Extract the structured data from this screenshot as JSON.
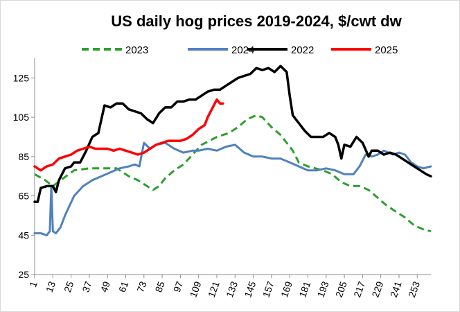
{
  "chart_data": {
    "type": "line",
    "title": "US daily hog prices 2019-2024, $/cwt dw",
    "xlabel": "",
    "ylabel": "",
    "ylim": [
      25,
      135
    ],
    "xlim": [
      1,
      262
    ],
    "yticks": [
      25,
      45,
      65,
      85,
      105,
      125
    ],
    "xticks": [
      1,
      13,
      25,
      37,
      49,
      61,
      73,
      85,
      97,
      109,
      121,
      133,
      145,
      157,
      169,
      181,
      193,
      205,
      217,
      229,
      241,
      253
    ],
    "grid": false,
    "legend_position": "top",
    "legend": [
      "2023",
      "2024",
      "2022",
      "2025"
    ],
    "series": [
      {
        "name": "2023",
        "color": "#2ca02c",
        "style": "dashed",
        "points": [
          [
            1,
            76
          ],
          [
            8,
            73
          ],
          [
            13,
            70
          ],
          [
            20,
            74
          ],
          [
            27,
            78
          ],
          [
            37,
            79
          ],
          [
            45,
            79
          ],
          [
            55,
            79
          ],
          [
            63,
            75
          ],
          [
            69,
            73
          ],
          [
            75,
            70
          ],
          [
            79,
            68
          ],
          [
            83,
            70
          ],
          [
            87,
            74
          ],
          [
            93,
            78
          ],
          [
            99,
            81
          ],
          [
            105,
            86
          ],
          [
            111,
            91
          ],
          [
            121,
            95
          ],
          [
            129,
            97
          ],
          [
            135,
            100
          ],
          [
            141,
            104
          ],
          [
            147,
            106
          ],
          [
            151,
            105
          ],
          [
            157,
            100
          ],
          [
            163,
            96
          ],
          [
            167,
            92
          ],
          [
            171,
            88
          ],
          [
            175,
            82
          ],
          [
            181,
            80
          ],
          [
            191,
            78
          ],
          [
            197,
            76
          ],
          [
            203,
            72
          ],
          [
            209,
            70
          ],
          [
            215,
            70
          ],
          [
            221,
            68
          ],
          [
            227,
            64
          ],
          [
            233,
            60
          ],
          [
            239,
            57
          ],
          [
            245,
            54
          ],
          [
            251,
            50
          ],
          [
            257,
            48
          ],
          [
            262,
            47
          ]
        ]
      },
      {
        "name": "2024",
        "color": "#4f81bd",
        "style": "solid",
        "points": [
          [
            1,
            46
          ],
          [
            5,
            46
          ],
          [
            9,
            45
          ],
          [
            11,
            47
          ],
          [
            12,
            70
          ],
          [
            13,
            47
          ],
          [
            15,
            46
          ],
          [
            18,
            49
          ],
          [
            21,
            55
          ],
          [
            27,
            65
          ],
          [
            33,
            70
          ],
          [
            39,
            73
          ],
          [
            45,
            75
          ],
          [
            51,
            77
          ],
          [
            57,
            79
          ],
          [
            63,
            80
          ],
          [
            67,
            81
          ],
          [
            70,
            80
          ],
          [
            73,
            92
          ],
          [
            77,
            89
          ],
          [
            81,
            91
          ],
          [
            87,
            92
          ],
          [
            93,
            89
          ],
          [
            99,
            87
          ],
          [
            105,
            88
          ],
          [
            109,
            88
          ],
          [
            115,
            89
          ],
          [
            121,
            88
          ],
          [
            127,
            90
          ],
          [
            133,
            91
          ],
          [
            139,
            87
          ],
          [
            145,
            85
          ],
          [
            151,
            85
          ],
          [
            157,
            84
          ],
          [
            163,
            84
          ],
          [
            169,
            82
          ],
          [
            175,
            80
          ],
          [
            181,
            78
          ],
          [
            187,
            78
          ],
          [
            193,
            79
          ],
          [
            199,
            78
          ],
          [
            205,
            76
          ],
          [
            211,
            76
          ],
          [
            215,
            80
          ],
          [
            219,
            86
          ],
          [
            223,
            85
          ],
          [
            227,
            86
          ],
          [
            231,
            88
          ],
          [
            237,
            86
          ],
          [
            241,
            87
          ],
          [
            245,
            86
          ],
          [
            249,
            82
          ],
          [
            253,
            80
          ],
          [
            257,
            79
          ],
          [
            262,
            80
          ]
        ]
      },
      {
        "name": "2022",
        "color": "#000000",
        "style": "solid",
        "points": [
          [
            1,
            62
          ],
          [
            3,
            62
          ],
          [
            5,
            69
          ],
          [
            9,
            70
          ],
          [
            13,
            70
          ],
          [
            15,
            67
          ],
          [
            17,
            73
          ],
          [
            21,
            79
          ],
          [
            25,
            80
          ],
          [
            27,
            82
          ],
          [
            31,
            82
          ],
          [
            35,
            88
          ],
          [
            39,
            95
          ],
          [
            43,
            97
          ],
          [
            47,
            111
          ],
          [
            51,
            110
          ],
          [
            55,
            112
          ],
          [
            59,
            112
          ],
          [
            63,
            109
          ],
          [
            67,
            108
          ],
          [
            71,
            107
          ],
          [
            75,
            104
          ],
          [
            79,
            102
          ],
          [
            83,
            107
          ],
          [
            87,
            110
          ],
          [
            91,
            110
          ],
          [
            95,
            113
          ],
          [
            99,
            113
          ],
          [
            103,
            114
          ],
          [
            107,
            114
          ],
          [
            111,
            116
          ],
          [
            115,
            118
          ],
          [
            119,
            119
          ],
          [
            123,
            119
          ],
          [
            127,
            121
          ],
          [
            131,
            123
          ],
          [
            135,
            125
          ],
          [
            139,
            126
          ],
          [
            143,
            127
          ],
          [
            147,
            130
          ],
          [
            151,
            129
          ],
          [
            155,
            130
          ],
          [
            159,
            128
          ],
          [
            163,
            131
          ],
          [
            167,
            128
          ],
          [
            169,
            116
          ],
          [
            171,
            106
          ],
          [
            175,
            102
          ],
          [
            179,
            98
          ],
          [
            183,
            95
          ],
          [
            187,
            95
          ],
          [
            191,
            95
          ],
          [
            195,
            97
          ],
          [
            199,
            95
          ],
          [
            201,
            91
          ],
          [
            203,
            84
          ],
          [
            205,
            91
          ],
          [
            209,
            90
          ],
          [
            213,
            95
          ],
          [
            217,
            92
          ],
          [
            221,
            85
          ],
          [
            223,
            88
          ],
          [
            227,
            88
          ],
          [
            231,
            86
          ],
          [
            235,
            87
          ],
          [
            239,
            86
          ],
          [
            243,
            84
          ],
          [
            247,
            82
          ],
          [
            251,
            80
          ],
          [
            255,
            78
          ],
          [
            259,
            76
          ],
          [
            262,
            75
          ]
        ]
      },
      {
        "name": "2025",
        "color": "#ff0000",
        "style": "solid",
        "points": [
          [
            1,
            80
          ],
          [
            5,
            78
          ],
          [
            9,
            80
          ],
          [
            13,
            81
          ],
          [
            17,
            84
          ],
          [
            21,
            85
          ],
          [
            25,
            86
          ],
          [
            29,
            88
          ],
          [
            33,
            89
          ],
          [
            37,
            90
          ],
          [
            41,
            89
          ],
          [
            45,
            89
          ],
          [
            49,
            89
          ],
          [
            53,
            88
          ],
          [
            57,
            89
          ],
          [
            61,
            88
          ],
          [
            65,
            87
          ],
          [
            69,
            86
          ],
          [
            73,
            87
          ],
          [
            77,
            89
          ],
          [
            81,
            91
          ],
          [
            85,
            92
          ],
          [
            89,
            93
          ],
          [
            93,
            93
          ],
          [
            97,
            93
          ],
          [
            101,
            94
          ],
          [
            105,
            96
          ],
          [
            109,
            99
          ],
          [
            113,
            101
          ],
          [
            115,
            105
          ],
          [
            117,
            108
          ],
          [
            119,
            111
          ],
          [
            121,
            114
          ],
          [
            123,
            112
          ],
          [
            125,
            112
          ]
        ]
      }
    ]
  }
}
